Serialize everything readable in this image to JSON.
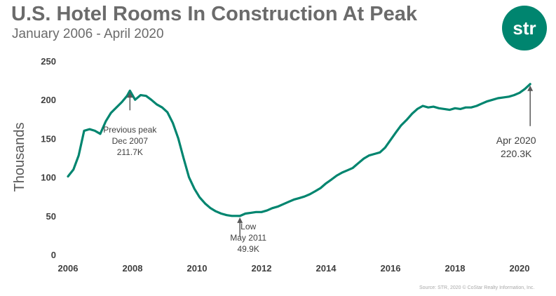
{
  "header": {
    "title": "U.S. Hotel Rooms In Construction At Peak",
    "subtitle": "January 2006 - April 2020",
    "logo_text": "str"
  },
  "source": "Source: STR, 2020 © CoStar Realty Information, Inc.",
  "colors": {
    "line": "#00856f",
    "logo": "#00856f",
    "text": "#6b6b6b",
    "arrow": "#595959"
  },
  "chart_data": {
    "type": "line",
    "title": "U.S. Hotel Rooms In Construction At Peak",
    "subtitle": "January 2006 - April 2020",
    "xlabel": "",
    "ylabel": "Thousands",
    "xlim": [
      2006,
      2020.5
    ],
    "ylim": [
      0,
      250
    ],
    "x_ticks": [
      "2006",
      "2008",
      "2010",
      "2012",
      "2014",
      "2016",
      "2018",
      "2020"
    ],
    "y_ticks": [
      "0",
      "50",
      "100",
      "150",
      "200",
      "250"
    ],
    "grid": false,
    "legend": "none",
    "series": [
      {
        "name": "",
        "points": [
          [
            2006.0,
            101
          ],
          [
            2006.17,
            110
          ],
          [
            2006.33,
            128
          ],
          [
            2006.5,
            160
          ],
          [
            2006.67,
            162
          ],
          [
            2006.83,
            160
          ],
          [
            2007.0,
            156
          ],
          [
            2007.17,
            172
          ],
          [
            2007.33,
            183
          ],
          [
            2007.5,
            190
          ],
          [
            2007.67,
            197
          ],
          [
            2007.83,
            205
          ],
          [
            2007.92,
            211.7
          ],
          [
            2008.08,
            200
          ],
          [
            2008.25,
            206
          ],
          [
            2008.42,
            205
          ],
          [
            2008.58,
            200
          ],
          [
            2008.75,
            194
          ],
          [
            2008.92,
            190
          ],
          [
            2009.08,
            184
          ],
          [
            2009.25,
            170
          ],
          [
            2009.42,
            150
          ],
          [
            2009.58,
            125
          ],
          [
            2009.75,
            100
          ],
          [
            2009.92,
            85
          ],
          [
            2010.08,
            74
          ],
          [
            2010.25,
            66
          ],
          [
            2010.42,
            60
          ],
          [
            2010.58,
            56
          ],
          [
            2010.75,
            53
          ],
          [
            2010.92,
            51
          ],
          [
            2011.08,
            50
          ],
          [
            2011.25,
            50
          ],
          [
            2011.33,
            49.9
          ],
          [
            2011.5,
            53
          ],
          [
            2011.67,
            54
          ],
          [
            2011.83,
            55
          ],
          [
            2012.0,
            55
          ],
          [
            2012.17,
            57
          ],
          [
            2012.33,
            60
          ],
          [
            2012.5,
            62
          ],
          [
            2012.67,
            65
          ],
          [
            2012.83,
            68
          ],
          [
            2013.0,
            71
          ],
          [
            2013.17,
            73
          ],
          [
            2013.33,
            75
          ],
          [
            2013.5,
            78
          ],
          [
            2013.67,
            82
          ],
          [
            2013.83,
            86
          ],
          [
            2014.0,
            92
          ],
          [
            2014.17,
            97
          ],
          [
            2014.33,
            102
          ],
          [
            2014.5,
            106
          ],
          [
            2014.67,
            109
          ],
          [
            2014.83,
            112
          ],
          [
            2015.0,
            118
          ],
          [
            2015.17,
            124
          ],
          [
            2015.33,
            128
          ],
          [
            2015.5,
            130
          ],
          [
            2015.67,
            132
          ],
          [
            2015.83,
            138
          ],
          [
            2016.0,
            148
          ],
          [
            2016.17,
            158
          ],
          [
            2016.33,
            167
          ],
          [
            2016.5,
            174
          ],
          [
            2016.67,
            182
          ],
          [
            2016.83,
            188
          ],
          [
            2017.0,
            192
          ],
          [
            2017.17,
            190
          ],
          [
            2017.33,
            191
          ],
          [
            2017.5,
            189
          ],
          [
            2017.67,
            188
          ],
          [
            2017.83,
            187
          ],
          [
            2018.0,
            189
          ],
          [
            2018.17,
            188
          ],
          [
            2018.33,
            190
          ],
          [
            2018.5,
            190
          ],
          [
            2018.67,
            192
          ],
          [
            2018.83,
            195
          ],
          [
            2019.0,
            198
          ],
          [
            2019.17,
            200
          ],
          [
            2019.33,
            202
          ],
          [
            2019.5,
            203
          ],
          [
            2019.67,
            204
          ],
          [
            2019.83,
            206
          ],
          [
            2020.0,
            209
          ],
          [
            2020.17,
            214
          ],
          [
            2020.33,
            220.3
          ]
        ]
      }
    ],
    "annotations": [
      {
        "x": 2007.92,
        "y": 211.7,
        "lines": [
          "Previous peak",
          "Dec 2007",
          "211.7K"
        ]
      },
      {
        "x": 2011.33,
        "y": 49.9,
        "lines": [
          "Low",
          "May 2011",
          "49.9K"
        ]
      },
      {
        "x": 2020.33,
        "y": 220.3,
        "lines": [
          "Apr 2020",
          "220.3K"
        ]
      }
    ]
  }
}
